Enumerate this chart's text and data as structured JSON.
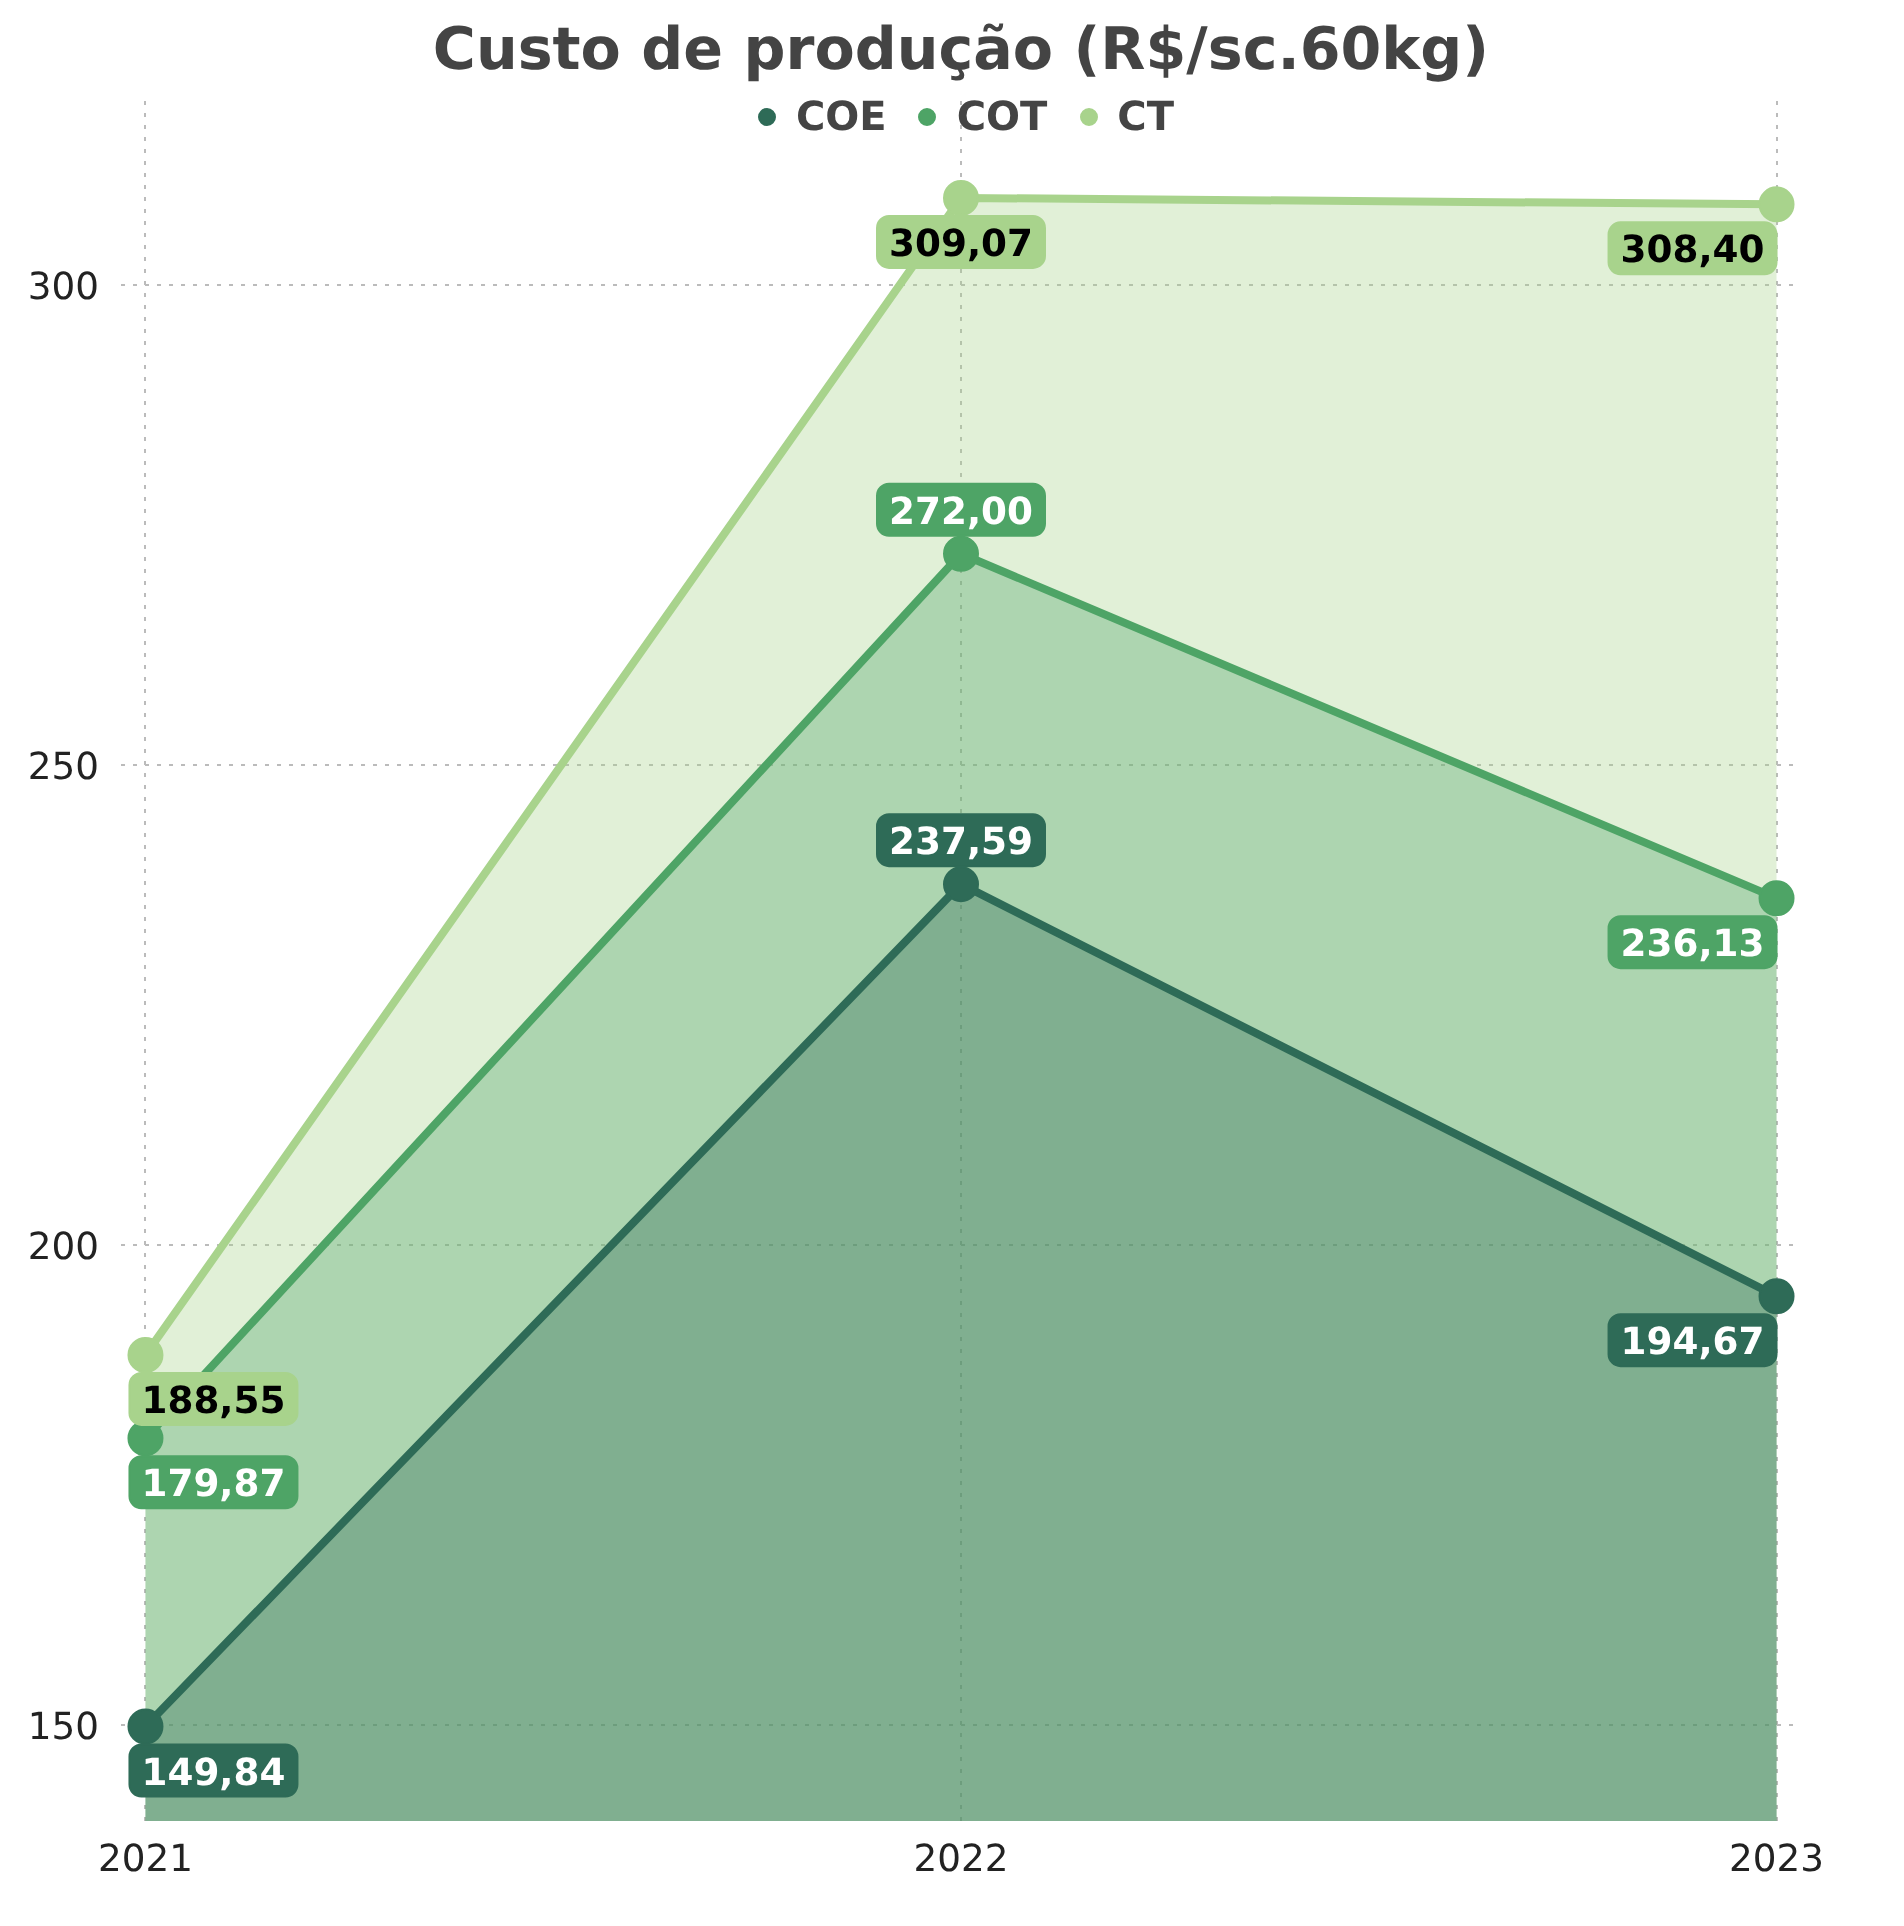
{
  "chart_data": {
    "type": "area",
    "title": "Custo de produção (R$/sc.60kg)",
    "categories": [
      "2021",
      "2022",
      "2023"
    ],
    "series": [
      {
        "name": "COE",
        "color": "#2e6b57",
        "values": [
          149.84,
          237.59,
          194.67
        ],
        "value_labels": [
          "149,84",
          "237,59",
          "194,67"
        ]
      },
      {
        "name": "COT",
        "color": "#4ea466",
        "values": [
          179.87,
          272.0,
          236.13
        ],
        "value_labels": [
          "179,87",
          "272,00",
          "236,13"
        ]
      },
      {
        "name": "CT",
        "color": "#a8d38c",
        "values": [
          188.55,
          309.07,
          308.4
        ],
        "value_labels": [
          "188,55",
          "309,07",
          "308,40"
        ]
      }
    ],
    "ylim": [
      140,
      320
    ],
    "yticks": [
      150,
      200,
      250,
      300
    ],
    "grid": true,
    "legend": "top",
    "marker": "circle",
    "line_style": "solid"
  }
}
